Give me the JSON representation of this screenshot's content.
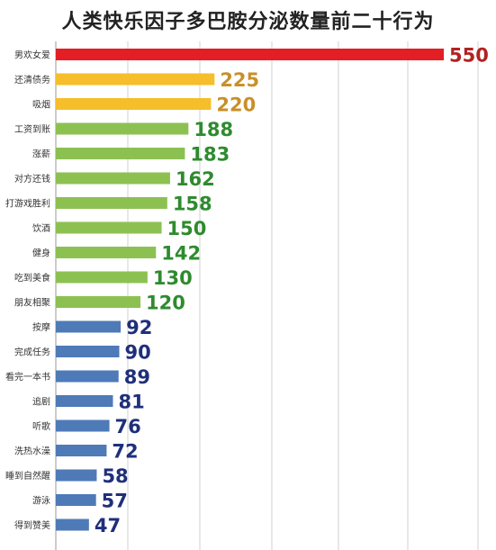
{
  "chart_data": {
    "type": "bar",
    "orientation": "horizontal",
    "title": "人类快乐因子多巴胺分泌数量前二十行为",
    "categories": [
      "男欢女爱",
      "还清债务",
      "吸烟",
      "工资到账",
      "涨薪",
      "对方还钱",
      "打游戏胜利",
      "饮酒",
      "健身",
      "吃到美食",
      "朋友相聚",
      "按摩",
      "完成任务",
      "看完一本书",
      "追剧",
      "听歌",
      "洗热水澡",
      "睡到自然醒",
      "游泳",
      "得到赞美"
    ],
    "values": [
      550,
      225,
      220,
      188,
      183,
      162,
      158,
      150,
      142,
      130,
      120,
      92,
      90,
      89,
      81,
      76,
      72,
      58,
      57,
      47
    ],
    "bar_colors": [
      "#e31e24",
      "#f6be2a",
      "#f6be2a",
      "#8cc152",
      "#8cc152",
      "#8cc152",
      "#8cc152",
      "#8cc152",
      "#8cc152",
      "#8cc152",
      "#8cc152",
      "#4e7ab8",
      "#4e7ab8",
      "#4e7ab8",
      "#4e7ab8",
      "#4e7ab8",
      "#4e7ab8",
      "#4e7ab8",
      "#4e7ab8",
      "#4e7ab8"
    ],
    "label_colors": [
      "#b22222",
      "#c8902a",
      "#c8902a",
      "#2e8b2e",
      "#2e8b2e",
      "#2e8b2e",
      "#2e8b2e",
      "#2e8b2e",
      "#2e8b2e",
      "#2e8b2e",
      "#2e8b2e",
      "#1f2f7a",
      "#1f2f7a",
      "#1f2f7a",
      "#1f2f7a",
      "#1f2f7a",
      "#1f2f7a",
      "#1f2f7a",
      "#1f2f7a",
      "#1f2f7a"
    ],
    "xlim": [
      0,
      550
    ],
    "grid": true,
    "xlabel": "",
    "ylabel": ""
  }
}
